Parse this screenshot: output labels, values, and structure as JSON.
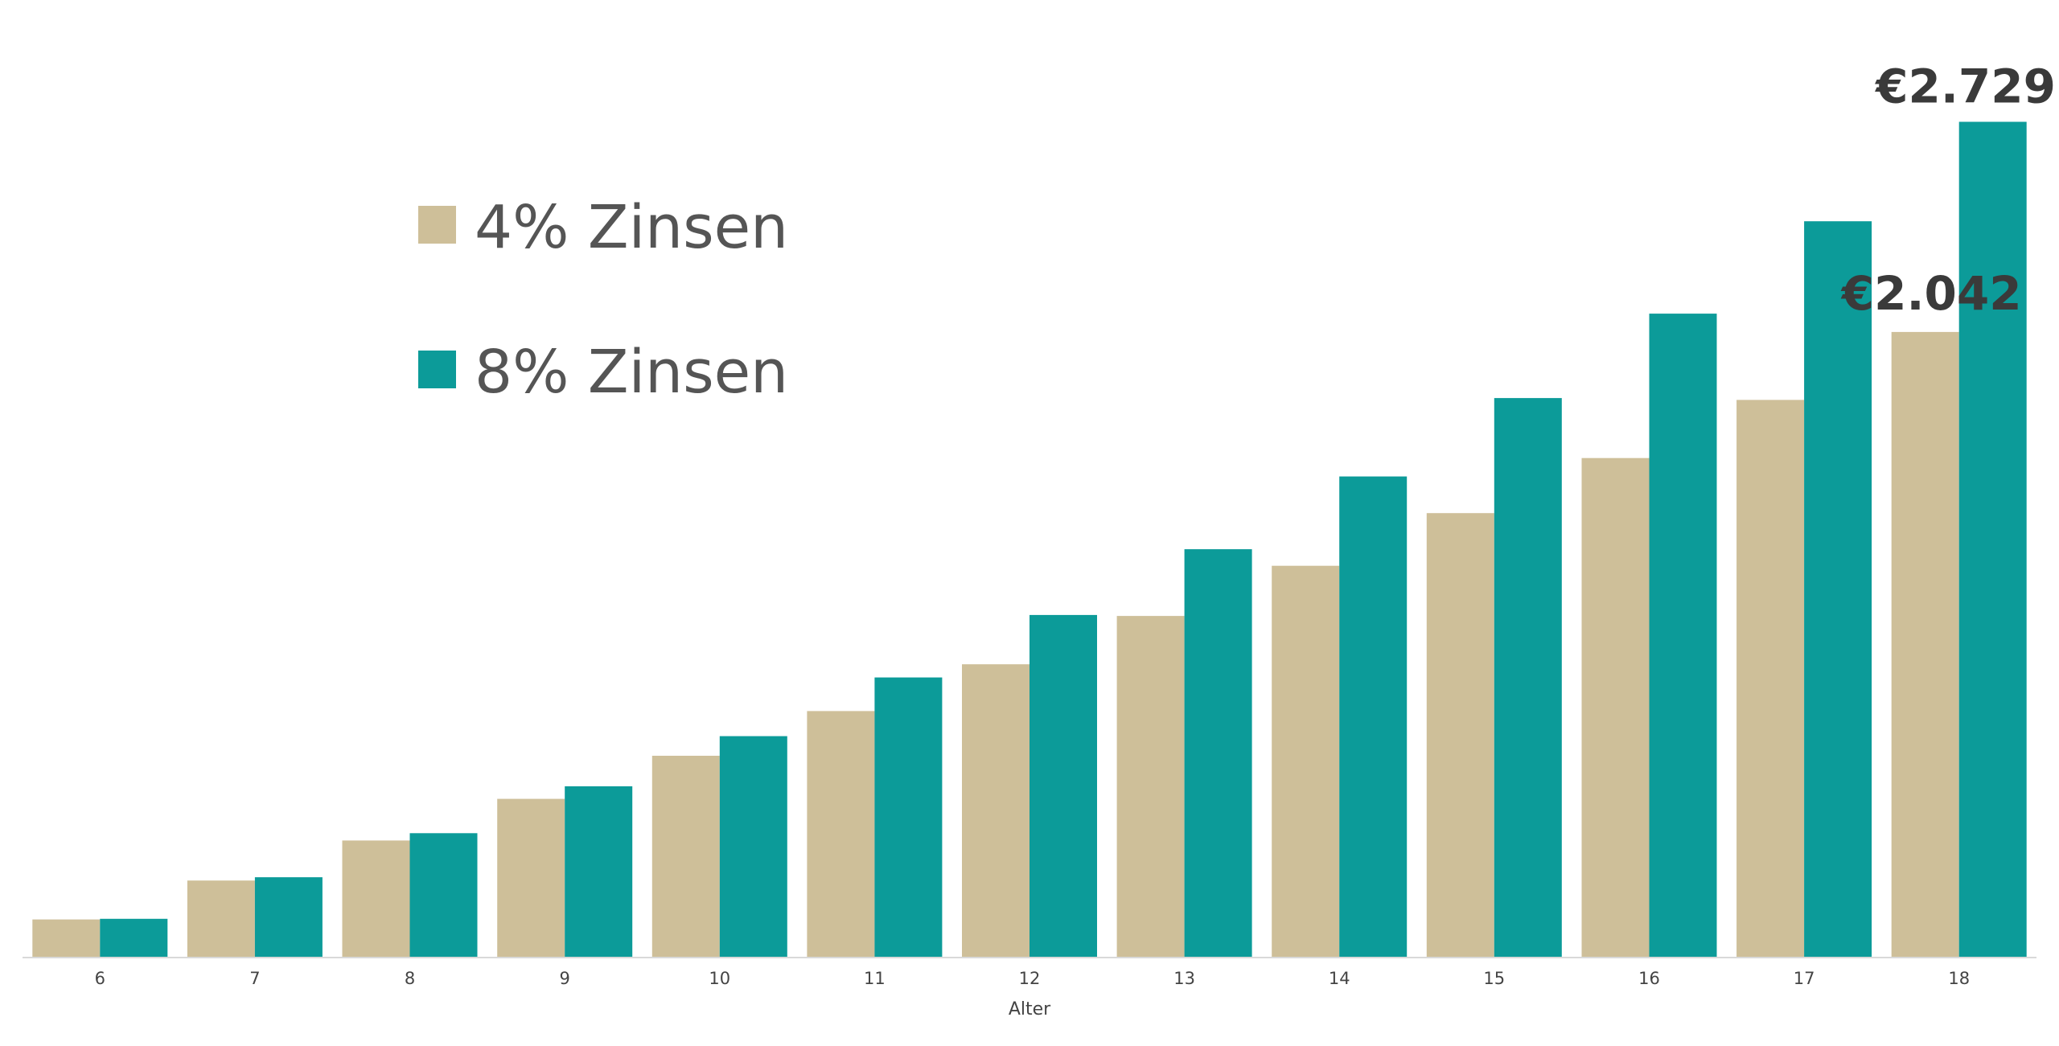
{
  "chart_data": {
    "type": "bar",
    "title": "",
    "xlabel": "Alter",
    "ylabel": "",
    "categories": [
      "6",
      "7",
      "8",
      "9",
      "10",
      "11",
      "12",
      "13",
      "14",
      "15",
      "16",
      "17",
      "18"
    ],
    "ylim": [
      0,
      2900
    ],
    "grid": false,
    "legend_position": "top-left",
    "series": [
      {
        "name": "4% Zinsen",
        "color": "#CEBF99",
        "values": [
          122,
          249,
          380,
          516,
          657,
          803,
          956,
          1114,
          1278,
          1450,
          1630,
          1820,
          2042
        ]
      },
      {
        "name": "8% Zinsen",
        "color": "#0C9B99",
        "values": [
          124,
          260,
          404,
          557,
          721,
          913,
          1117,
          1332,
          1570,
          1826,
          2102,
          2404,
          2729
        ]
      }
    ],
    "annotations": [
      {
        "series": 0,
        "category": "18",
        "text": "€2.042"
      },
      {
        "series": 1,
        "category": "18",
        "text": "€2.729"
      }
    ]
  }
}
